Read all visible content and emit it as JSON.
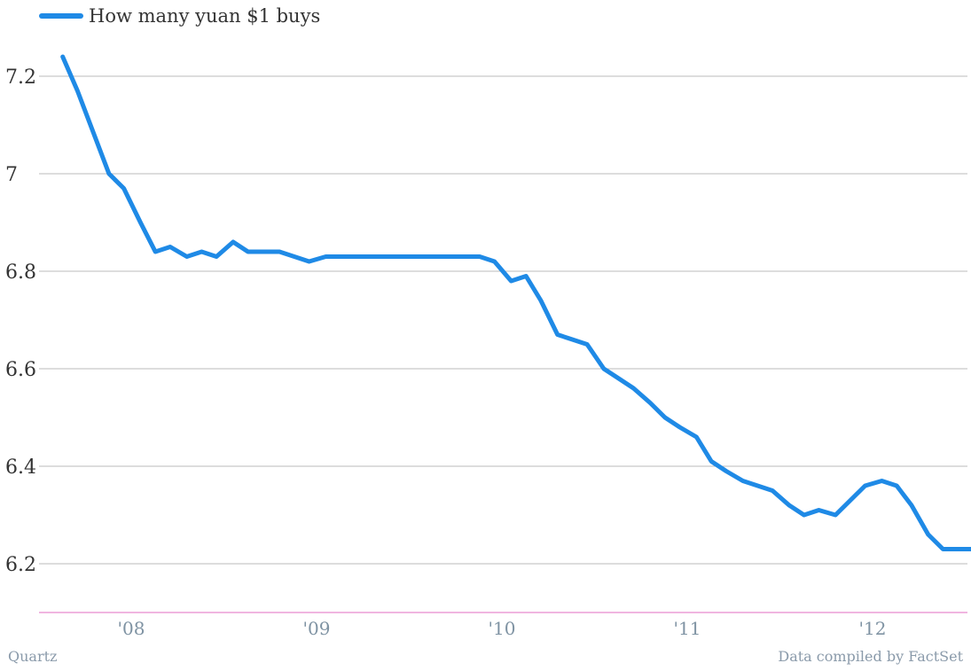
{
  "chart_data": {
    "type": "line",
    "title": "",
    "xlabel": "",
    "ylabel": "",
    "ylim": [
      6.1,
      7.2
    ],
    "xlim": [
      2007.6,
      2012.6
    ],
    "y_ticks": [
      7.2,
      7,
      6.8,
      6.6,
      6.4,
      6.2
    ],
    "y_tick_labels": [
      "7.2",
      "7",
      "6.8",
      "6.6",
      "6.4",
      "6.2"
    ],
    "x_ticks": [
      2008,
      2009,
      2010,
      2011,
      2012
    ],
    "x_tick_labels": [
      "'08",
      "'09",
      "'10",
      "'11",
      "'12"
    ],
    "grid": "horizontal",
    "legend_position": "top-left",
    "colors": {
      "series": "#1f8ae6",
      "grid": "#bbbbbb",
      "baseline": "#e06bc0",
      "axis_text": "#7f93a3"
    },
    "series": [
      {
        "name": "How many yuan $1 buys",
        "x": [
          2007.63,
          2007.71,
          2007.8,
          2007.88,
          2007.96,
          2008.05,
          2008.13,
          2008.21,
          2008.3,
          2008.38,
          2008.46,
          2008.55,
          2008.63,
          2008.71,
          2008.8,
          2008.88,
          2008.96,
          2009.05,
          2009.13,
          2009.21,
          2009.3,
          2009.38,
          2009.46,
          2009.55,
          2009.63,
          2009.71,
          2009.8,
          2009.88,
          2009.96,
          2010.05,
          2010.13,
          2010.21,
          2010.3,
          2010.38,
          2010.46,
          2010.55,
          2010.63,
          2010.71,
          2010.8,
          2010.88,
          2010.96,
          2011.05,
          2011.13,
          2011.21,
          2011.3,
          2011.38,
          2011.46,
          2011.55,
          2011.63,
          2011.71,
          2011.8,
          2011.88,
          2011.96,
          2012.05,
          2012.13,
          2012.21,
          2012.3,
          2012.38,
          2012.46,
          2012.55
        ],
        "values": [
          7.24,
          7.17,
          7.08,
          7.0,
          6.97,
          6.9,
          6.84,
          6.85,
          6.83,
          6.84,
          6.83,
          6.86,
          6.84,
          6.84,
          6.84,
          6.83,
          6.82,
          6.83,
          6.83,
          6.83,
          6.83,
          6.83,
          6.83,
          6.83,
          6.83,
          6.83,
          6.83,
          6.83,
          6.82,
          6.78,
          6.79,
          6.74,
          6.67,
          6.66,
          6.65,
          6.6,
          6.58,
          6.56,
          6.53,
          6.5,
          6.48,
          6.46,
          6.41,
          6.39,
          6.37,
          6.36,
          6.35,
          6.32,
          6.3,
          6.31,
          6.3,
          6.33,
          6.36,
          6.37,
          6.36,
          6.32,
          6.26,
          6.23,
          6.23,
          6.23
        ]
      }
    ]
  },
  "legend": {
    "label": "How many yuan $1 buys"
  },
  "footer": {
    "source_left": "Quartz",
    "source_right": "Data compiled by FactSet"
  }
}
